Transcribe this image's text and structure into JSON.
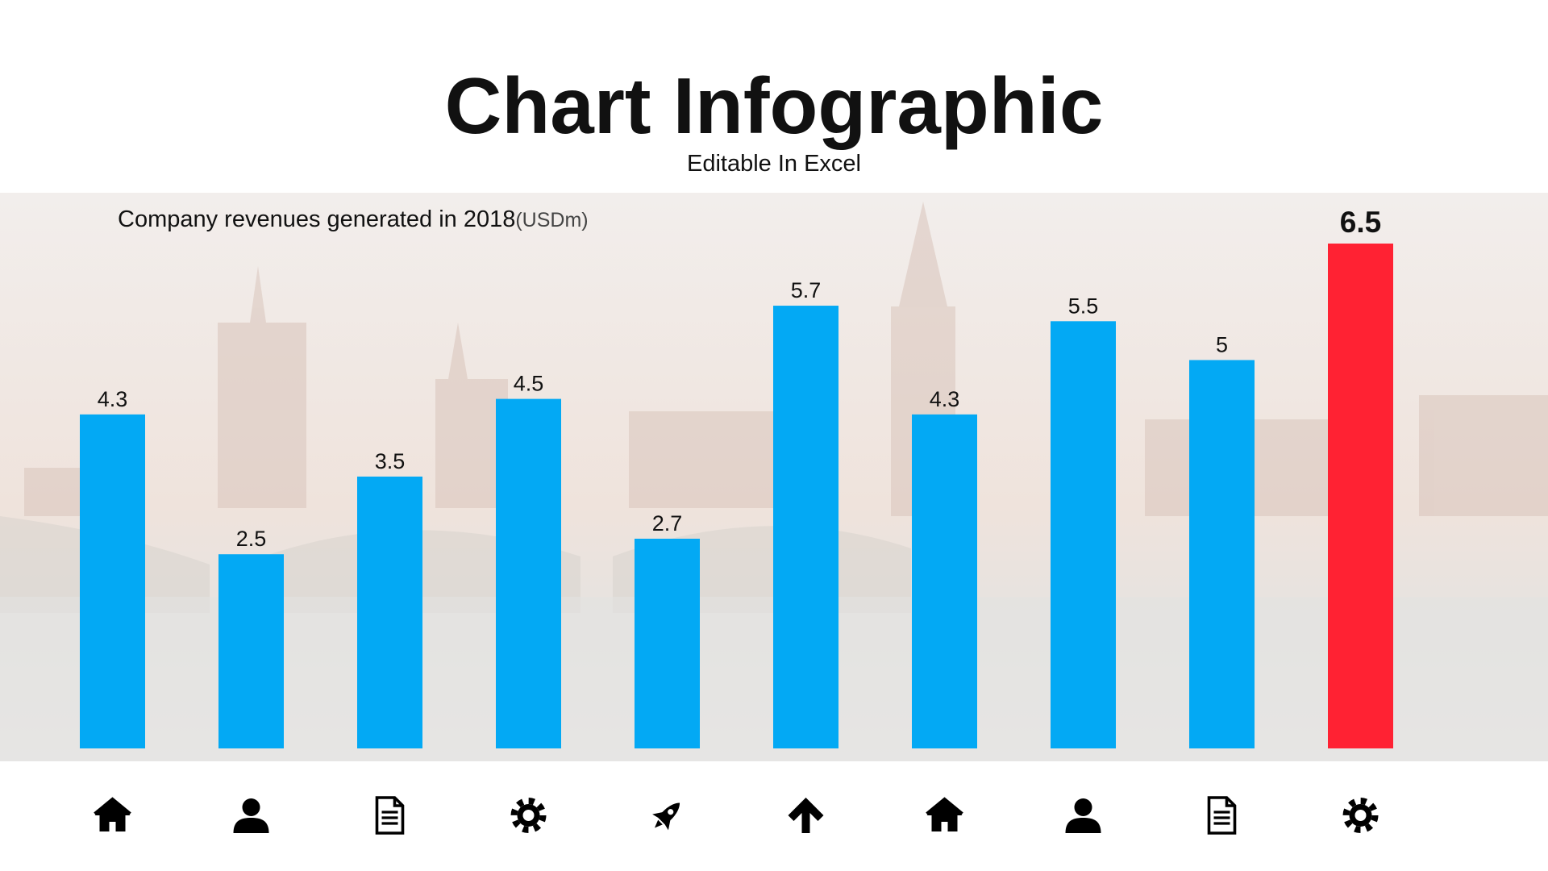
{
  "chart_data": {
    "type": "bar",
    "title": "Chart Infographic",
    "subtitle": "Editable In Excel",
    "caption": "Company revenues generated in 2018",
    "unit": "(USDm)",
    "categories": [
      null,
      null,
      null,
      null,
      null,
      null,
      null,
      null,
      null,
      null
    ],
    "values": [
      4.3,
      2.5,
      3.5,
      4.5,
      2.7,
      5.7,
      4.3,
      5.5,
      5,
      6.5
    ],
    "colors": [
      "#03a9f4",
      "#03a9f4",
      "#03a9f4",
      "#03a9f4",
      "#03a9f4",
      "#03a9f4",
      "#03a9f4",
      "#03a9f4",
      "#03a9f4",
      "#ff2233"
    ]
  }
}
